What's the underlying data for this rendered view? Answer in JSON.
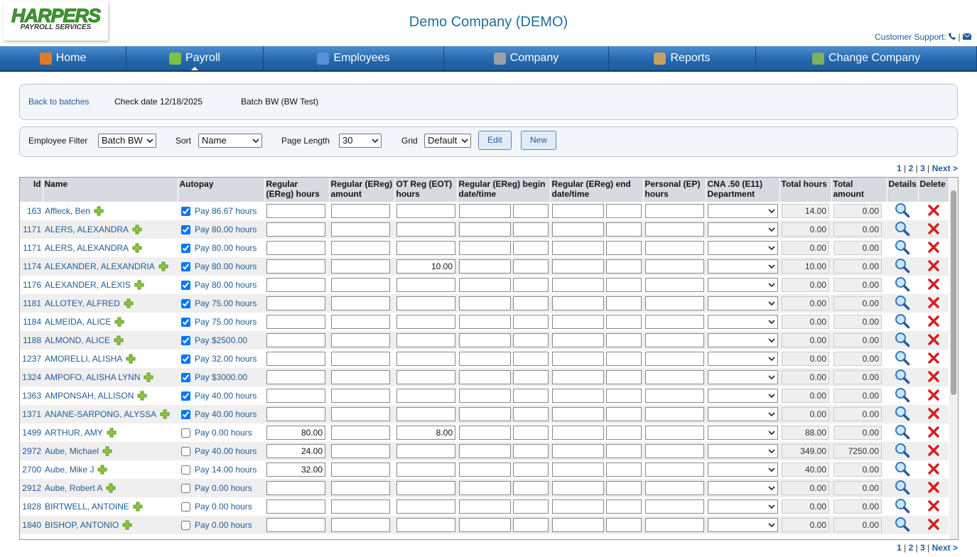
{
  "header": {
    "logo": {
      "brand": "HARPERS",
      "tagline": "PAYROLL SERVICES"
    },
    "title": "Demo Company (DEMO)",
    "support": "Customer Support:",
    "support_separator": "|"
  },
  "nav": [
    "Home",
    "Payroll",
    "Employees",
    "Company",
    "Reports",
    "Change Company"
  ],
  "batch_bar": {
    "back": "Back to batches",
    "check_date": "Check date 12/18/2025",
    "batch": "Batch BW (BW Test)"
  },
  "filter_bar": {
    "employee_filter": {
      "label": "Employee Filter",
      "value": "Batch BW"
    },
    "sort": {
      "label": "Sort",
      "value": "Name"
    },
    "page_length": {
      "label": "Page Length",
      "value": "30"
    },
    "grid": {
      "label": "Grid",
      "value": "Default"
    },
    "buttons": [
      "Edit",
      "New"
    ]
  },
  "pagination": {
    "pages": [
      "1",
      "2",
      "3"
    ],
    "separator": "|",
    "next": "Next >"
  },
  "table": {
    "headers": [
      "Id",
      "Name",
      "Autopay",
      "Regular (EReg) hours",
      "Regular (EReg) amount",
      "OT Reg (EOT) hours",
      "Regular (EReg) begin date/time",
      "Regular (EReg) end date/time",
      "Personal (EP) hours",
      "CNA .50 (E11) Department",
      "Total hours",
      "Total amount",
      "Details",
      "Delete"
    ],
    "rows": [
      {
        "id": "163",
        "name": "Affleck, Ben",
        "autopay": true,
        "pay": "Pay 86.67 hours",
        "reg_hours": null,
        "ot_hours": null,
        "total_hours": "14.00",
        "total_amount": "0.00"
      },
      {
        "id": "1171",
        "name": "ALERS, ALEXANDRA",
        "autopay": true,
        "pay": "Pay 80.00 hours",
        "reg_hours": null,
        "ot_hours": null,
        "total_hours": "0.00",
        "total_amount": "0.00"
      },
      {
        "id": "1171",
        "name": "ALERS, ALEXANDRA",
        "autopay": true,
        "pay": "Pay 80.00 hours",
        "reg_hours": null,
        "ot_hours": null,
        "total_hours": "0.00",
        "total_amount": "0.00"
      },
      {
        "id": "1174",
        "name": "ALEXANDER, ALEXANDRIA",
        "autopay": true,
        "pay": "Pay 80.00 hours",
        "reg_hours": null,
        "ot_hours": "10.00",
        "total_hours": "10.00",
        "total_amount": "0.00"
      },
      {
        "id": "1176",
        "name": "ALEXANDER, ALEXIS",
        "autopay": true,
        "pay": "Pay 80.00 hours",
        "reg_hours": null,
        "ot_hours": null,
        "total_hours": "0.00",
        "total_amount": "0.00"
      },
      {
        "id": "1181",
        "name": "ALLOTEY, ALFRED",
        "autopay": true,
        "pay": "Pay 75.00 hours",
        "reg_hours": null,
        "ot_hours": null,
        "total_hours": "0.00",
        "total_amount": "0.00"
      },
      {
        "id": "1184",
        "name": "ALMEIDA, ALICE",
        "autopay": true,
        "pay": "Pay 75.00 hours",
        "reg_hours": null,
        "ot_hours": null,
        "total_hours": "0.00",
        "total_amount": "0.00"
      },
      {
        "id": "1188",
        "name": "ALMOND, ALICE",
        "autopay": true,
        "pay": "Pay $2500.00",
        "reg_hours": null,
        "ot_hours": null,
        "total_hours": "0.00",
        "total_amount": "0.00"
      },
      {
        "id": "1237",
        "name": "AMORELLI, ALISHA",
        "autopay": true,
        "pay": "Pay 32.00 hours",
        "reg_hours": null,
        "ot_hours": null,
        "total_hours": "0.00",
        "total_amount": "0.00"
      },
      {
        "id": "1324",
        "name": "AMPOFO, ALISHA LYNN",
        "autopay": true,
        "pay": "Pay $3000.00",
        "reg_hours": null,
        "ot_hours": null,
        "total_hours": "0.00",
        "total_amount": "0.00"
      },
      {
        "id": "1363",
        "name": "AMPONSAH, ALLISON",
        "autopay": true,
        "pay": "Pay 40.00 hours",
        "reg_hours": null,
        "ot_hours": null,
        "total_hours": "0.00",
        "total_amount": "0.00"
      },
      {
        "id": "1371",
        "name": "ANANE-SARPONG, ALYSSA",
        "autopay": true,
        "pay": "Pay 40.00 hours",
        "reg_hours": null,
        "ot_hours": null,
        "total_hours": "0.00",
        "total_amount": "0.00"
      },
      {
        "id": "1499",
        "name": "ARTHUR, AMY",
        "autopay": false,
        "pay": "Pay 0.00 hours",
        "reg_hours": "80.00",
        "ot_hours": "8.00",
        "total_hours": "88.00",
        "total_amount": "0.00"
      },
      {
        "id": "2972",
        "name": "Aube, Michael",
        "autopay": false,
        "pay": "Pay 40.00 hours",
        "reg_hours": "24.00",
        "ot_hours": null,
        "total_hours": "349.00",
        "total_amount": "7250.00"
      },
      {
        "id": "2700",
        "name": "Aube, Mike J",
        "autopay": false,
        "pay": "Pay 14.00 hours",
        "reg_hours": "32.00",
        "ot_hours": null,
        "total_hours": "40.00",
        "total_amount": "0.00"
      },
      {
        "id": "2912",
        "name": "Aube, Robert A",
        "autopay": false,
        "pay": "Pay 0.00 hours",
        "reg_hours": null,
        "ot_hours": null,
        "total_hours": "0.00",
        "total_amount": "0.00"
      },
      {
        "id": "1828",
        "name": "BIRTWELL, ANTOINE",
        "autopay": false,
        "pay": "Pay 0.00 hours",
        "reg_hours": null,
        "ot_hours": null,
        "total_hours": "0.00",
        "total_amount": "0.00"
      },
      {
        "id": "1840",
        "name": "BISHOP, ANTONIO",
        "autopay": false,
        "pay": "Pay 0.00 hours",
        "reg_hours": null,
        "ot_hours": null,
        "total_hours": "0.00",
        "total_amount": "0.00"
      }
    ]
  }
}
